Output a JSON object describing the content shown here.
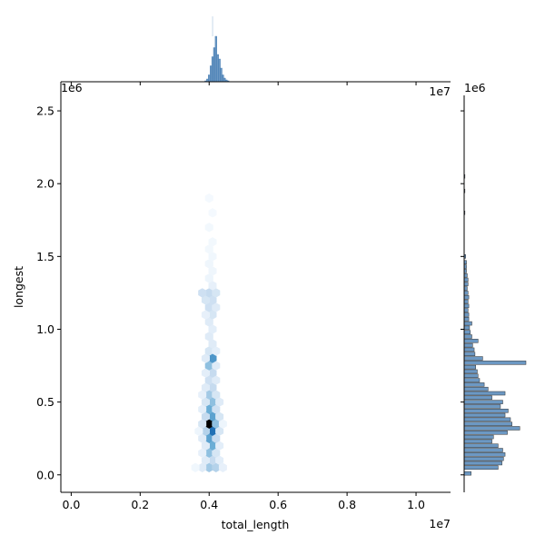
{
  "chart_data": {
    "type": "hexbin",
    "kind": "joint plot (hexbin with marginal histograms)",
    "xlabel": "total_length",
    "ylabel": "longest",
    "x_scale_label": "1e7",
    "y_scale_label": "1e6",
    "x_top_scale_label": "1e7",
    "y_right_scale_label": "1e6",
    "xlim": [
      -0.03,
      1.1
    ],
    "ylim": [
      -0.12,
      2.7
    ],
    "x_ticks": [
      "0.0",
      "0.2",
      "0.4",
      "0.6",
      "0.8",
      "1.0"
    ],
    "x_tick_values": [
      0.0,
      0.2,
      0.4,
      0.6,
      0.8,
      1.0
    ],
    "y_ticks": [
      "0.0",
      "0.5",
      "1.0",
      "1.5",
      "2.0",
      "2.5"
    ],
    "y_tick_values": [
      0.0,
      0.5,
      1.0,
      1.5,
      2.0,
      2.5
    ],
    "color": "#3b75af",
    "hexbins": [
      {
        "x": 0.4,
        "y": 0.05,
        "c": 0.4
      },
      {
        "x": 0.42,
        "y": 0.05,
        "c": 0.35
      },
      {
        "x": 0.38,
        "y": 0.05,
        "c": 0.15
      },
      {
        "x": 0.44,
        "y": 0.05,
        "c": 0.1
      },
      {
        "x": 0.36,
        "y": 0.05,
        "c": 0.04
      },
      {
        "x": 0.41,
        "y": 0.1,
        "c": 0.3
      },
      {
        "x": 0.39,
        "y": 0.1,
        "c": 0.15
      },
      {
        "x": 0.43,
        "y": 0.1,
        "c": 0.12
      },
      {
        "x": 0.4,
        "y": 0.15,
        "c": 0.45
      },
      {
        "x": 0.42,
        "y": 0.15,
        "c": 0.2
      },
      {
        "x": 0.38,
        "y": 0.15,
        "c": 0.1
      },
      {
        "x": 0.41,
        "y": 0.2,
        "c": 0.55
      },
      {
        "x": 0.39,
        "y": 0.2,
        "c": 0.15
      },
      {
        "x": 0.43,
        "y": 0.2,
        "c": 0.12
      },
      {
        "x": 0.4,
        "y": 0.25,
        "c": 0.6
      },
      {
        "x": 0.42,
        "y": 0.25,
        "c": 0.3
      },
      {
        "x": 0.38,
        "y": 0.25,
        "c": 0.15
      },
      {
        "x": 0.41,
        "y": 0.3,
        "c": 0.8
      },
      {
        "x": 0.39,
        "y": 0.3,
        "c": 0.35
      },
      {
        "x": 0.43,
        "y": 0.3,
        "c": 0.2
      },
      {
        "x": 0.37,
        "y": 0.3,
        "c": 0.06
      },
      {
        "x": 0.4,
        "y": 0.35,
        "c": 1.0
      },
      {
        "x": 0.42,
        "y": 0.35,
        "c": 0.45
      },
      {
        "x": 0.38,
        "y": 0.35,
        "c": 0.2
      },
      {
        "x": 0.44,
        "y": 0.35,
        "c": 0.06
      },
      {
        "x": 0.41,
        "y": 0.4,
        "c": 0.6
      },
      {
        "x": 0.39,
        "y": 0.4,
        "c": 0.3
      },
      {
        "x": 0.43,
        "y": 0.4,
        "c": 0.2
      },
      {
        "x": 0.4,
        "y": 0.45,
        "c": 0.55
      },
      {
        "x": 0.42,
        "y": 0.45,
        "c": 0.25
      },
      {
        "x": 0.38,
        "y": 0.45,
        "c": 0.12
      },
      {
        "x": 0.41,
        "y": 0.5,
        "c": 0.45
      },
      {
        "x": 0.39,
        "y": 0.5,
        "c": 0.2
      },
      {
        "x": 0.43,
        "y": 0.5,
        "c": 0.15
      },
      {
        "x": 0.4,
        "y": 0.55,
        "c": 0.4
      },
      {
        "x": 0.42,
        "y": 0.55,
        "c": 0.2
      },
      {
        "x": 0.38,
        "y": 0.55,
        "c": 0.1
      },
      {
        "x": 0.41,
        "y": 0.6,
        "c": 0.3
      },
      {
        "x": 0.39,
        "y": 0.6,
        "c": 0.15
      },
      {
        "x": 0.4,
        "y": 0.65,
        "c": 0.25
      },
      {
        "x": 0.42,
        "y": 0.65,
        "c": 0.15
      },
      {
        "x": 0.41,
        "y": 0.7,
        "c": 0.3
      },
      {
        "x": 0.39,
        "y": 0.7,
        "c": 0.12
      },
      {
        "x": 0.4,
        "y": 0.75,
        "c": 0.45
      },
      {
        "x": 0.42,
        "y": 0.75,
        "c": 0.15
      },
      {
        "x": 0.41,
        "y": 0.8,
        "c": 0.65
      },
      {
        "x": 0.39,
        "y": 0.8,
        "c": 0.15
      },
      {
        "x": 0.4,
        "y": 0.85,
        "c": 0.2
      },
      {
        "x": 0.42,
        "y": 0.85,
        "c": 0.12
      },
      {
        "x": 0.41,
        "y": 0.9,
        "c": 0.15
      },
      {
        "x": 0.4,
        "y": 0.95,
        "c": 0.15
      },
      {
        "x": 0.41,
        "y": 1.0,
        "c": 0.12
      },
      {
        "x": 0.4,
        "y": 1.05,
        "c": 0.15
      },
      {
        "x": 0.41,
        "y": 1.1,
        "c": 0.2
      },
      {
        "x": 0.39,
        "y": 1.1,
        "c": 0.1
      },
      {
        "x": 0.4,
        "y": 1.15,
        "c": 0.25
      },
      {
        "x": 0.42,
        "y": 1.15,
        "c": 0.15
      },
      {
        "x": 0.41,
        "y": 1.2,
        "c": 0.25
      },
      {
        "x": 0.39,
        "y": 1.2,
        "c": 0.2
      },
      {
        "x": 0.4,
        "y": 1.25,
        "c": 0.3
      },
      {
        "x": 0.38,
        "y": 1.25,
        "c": 0.25
      },
      {
        "x": 0.42,
        "y": 1.25,
        "c": 0.2
      },
      {
        "x": 0.41,
        "y": 1.3,
        "c": 0.1
      },
      {
        "x": 0.4,
        "y": 1.35,
        "c": 0.06
      },
      {
        "x": 0.41,
        "y": 1.4,
        "c": 0.05
      },
      {
        "x": 0.4,
        "y": 1.45,
        "c": 0.05
      },
      {
        "x": 0.41,
        "y": 1.5,
        "c": 0.04
      },
      {
        "x": 0.4,
        "y": 1.55,
        "c": 0.03
      },
      {
        "x": 0.41,
        "y": 1.6,
        "c": 0.03
      },
      {
        "x": 0.4,
        "y": 1.7,
        "c": 0.03
      },
      {
        "x": 0.41,
        "y": 1.8,
        "c": 0.02
      },
      {
        "x": 0.4,
        "y": 1.9,
        "c": 0.02
      }
    ],
    "marginal_x": {
      "bin_centers": [
        0.39,
        0.395,
        0.4,
        0.405,
        0.41,
        0.415,
        0.42,
        0.425,
        0.43,
        0.435,
        0.44,
        0.445,
        0.45,
        0.455
      ],
      "counts": [
        0.02,
        0.06,
        0.15,
        0.35,
        0.55,
        0.75,
        1.0,
        0.6,
        0.5,
        0.3,
        0.15,
        0.08,
        0.04,
        0.02
      ]
    },
    "marginal_y": {
      "bin_centers": [
        0.01,
        0.05,
        0.08,
        0.11,
        0.14,
        0.17,
        0.2,
        0.23,
        0.26,
        0.29,
        0.32,
        0.35,
        0.38,
        0.41,
        0.44,
        0.47,
        0.5,
        0.53,
        0.56,
        0.59,
        0.62,
        0.65,
        0.68,
        0.71,
        0.74,
        0.77,
        0.8,
        0.83,
        0.86,
        0.89,
        0.92,
        0.95,
        0.98,
        1.01,
        1.04,
        1.07,
        1.1,
        1.13,
        1.16,
        1.19,
        1.22,
        1.25,
        1.28,
        1.31,
        1.34,
        1.37,
        1.4,
        1.43,
        1.46,
        1.5,
        1.8,
        1.95,
        2.05
      ],
      "counts": [
        0.09,
        0.44,
        0.49,
        0.51,
        0.53,
        0.5,
        0.44,
        0.36,
        0.38,
        0.56,
        0.72,
        0.62,
        0.6,
        0.53,
        0.57,
        0.47,
        0.5,
        0.36,
        0.53,
        0.31,
        0.26,
        0.2,
        0.18,
        0.17,
        0.15,
        0.8,
        0.24,
        0.14,
        0.13,
        0.11,
        0.18,
        0.1,
        0.08,
        0.07,
        0.1,
        0.06,
        0.06,
        0.05,
        0.06,
        0.05,
        0.06,
        0.05,
        0.04,
        0.05,
        0.05,
        0.04,
        0.03,
        0.03,
        0.03,
        0.02,
        0.01,
        0.01,
        0.01
      ]
    }
  }
}
